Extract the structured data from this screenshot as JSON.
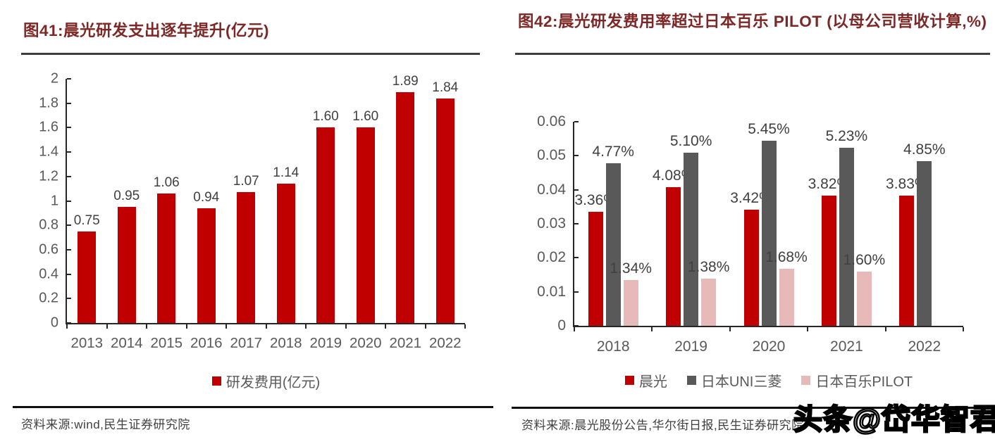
{
  "page": {
    "background": "#ffffff"
  },
  "left_panel": {
    "title": "图41:晨光研发支出逐年提升(亿元)",
    "source": "资料来源:wind,民生证券研究院"
  },
  "right_panel": {
    "title": "图42:晨光研发费用率超过日本百乐 PILOT (以母公司营收计算,%)",
    "source": "资料来源:晨光股份公告,华尔街日报,民生证券研究院",
    "watermark": "头条@岱华智君"
  },
  "colors": {
    "bar_red": "#C00000",
    "bar_dark_gray": "#595959",
    "bar_pink": "#E7B9B8",
    "axis_text": "#595959",
    "value_text": "#404040",
    "title_text": "#7D2826",
    "axis_line": "#262626"
  },
  "chart_data": [
    {
      "id": "rd-expense",
      "type": "bar",
      "title": "图41:晨光研发支出逐年提升(亿元)",
      "categories": [
        "2013",
        "2014",
        "2015",
        "2016",
        "2017",
        "2018",
        "2019",
        "2020",
        "2021",
        "2022"
      ],
      "series": [
        {
          "name": "研发费用(亿元)",
          "color": "#C00000",
          "values": [
            0.75,
            0.95,
            1.06,
            0.94,
            1.07,
            1.14,
            1.6,
            1.6,
            1.89,
            1.84
          ],
          "labels": [
            "0.75",
            "0.95",
            "1.06",
            "0.94",
            "1.07",
            "1.14",
            "1.60",
            "1.60",
            "1.89",
            "1.84"
          ]
        }
      ],
      "xlabel": "",
      "ylabel": "",
      "ylim": [
        0,
        2
      ],
      "yticks": [
        "2",
        "1.8",
        "1.6",
        "1.4",
        "1.2",
        "1",
        "0.8",
        "0.6",
        "0.4",
        "0.2",
        "0"
      ],
      "grid": false,
      "legend_position": "bottom"
    },
    {
      "id": "rd-ratio",
      "type": "bar",
      "title": "图42:晨光研发费用率超过日本百乐 PILOT (以母公司营收计算,%)",
      "categories": [
        "2018",
        "2019",
        "2020",
        "2021",
        "2022"
      ],
      "series": [
        {
          "name": "晨光",
          "color": "#C00000",
          "values": [
            0.0336,
            0.0408,
            0.0342,
            0.0382,
            0.0383
          ],
          "labels": [
            "3.36%",
            "4.08%",
            "3.42%",
            "3.82%",
            "3.83%"
          ]
        },
        {
          "name": "日本UNI三菱",
          "color": "#595959",
          "values": [
            0.0477,
            0.051,
            0.0545,
            0.0523,
            0.0485
          ],
          "labels": [
            "4.77%",
            "5.10%",
            "5.45%",
            "5.23%",
            "4.85%"
          ]
        },
        {
          "name": "日本百乐PILOT",
          "color": "#E7B9B8",
          "values": [
            0.0134,
            0.0138,
            0.0168,
            0.016,
            null
          ],
          "labels": [
            "1.34%",
            "1.38%",
            "1.68%",
            "1.60%",
            ""
          ]
        }
      ],
      "xlabel": "",
      "ylabel": "",
      "ylim": [
        0,
        0.06
      ],
      "yticks": [
        "0.06",
        "0.05",
        "0.04",
        "0.03",
        "0.02",
        "0.01",
        "0"
      ],
      "grid": false,
      "legend_position": "bottom"
    }
  ]
}
